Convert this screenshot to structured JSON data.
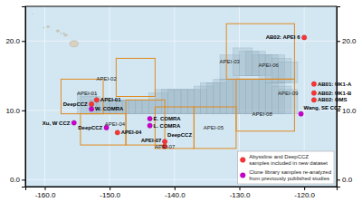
{
  "chart_data": {
    "type": "scatter",
    "xlim": [
      -163,
      -115
    ],
    "ylim": [
      -1,
      25
    ],
    "y2lim": [
      -1,
      25
    ],
    "xticks": [
      {
        "value": -160,
        "label": "-160.0"
      },
      {
        "value": -150,
        "label": "-150.0"
      },
      {
        "value": -140,
        "label": "-140.0"
      },
      {
        "value": -130,
        "label": "-130.0"
      },
      {
        "value": -120,
        "label": "-120.0"
      }
    ],
    "yticks": [
      {
        "value": 0,
        "label": "0.0"
      },
      {
        "value": 10,
        "label": "10.0"
      },
      {
        "value": 20,
        "label": "20.0"
      }
    ],
    "y2ticks": [
      {
        "value": 0,
        "label": "0.0"
      },
      {
        "value": 10,
        "label": "10.0"
      },
      {
        "value": 20,
        "label": "20.0"
      }
    ],
    "grid": true,
    "legend": "lower right",
    "series": [
      {
        "name": "Abyssline and DeepCCZ\nsamples included in new dataset",
        "color": "#ff3333",
        "x": [
          -152.8,
          -152.0,
          -148.8,
          -141.5,
          -141.5,
          -120.0,
          -118.5,
          -118.5,
          -118.5
        ],
        "values": [
          10.9,
          11.5,
          6.8,
          5.5,
          4.8,
          20.5,
          13.8,
          12.5,
          11.5
        ],
        "labels": [
          "DeepCCZ",
          "APEI-01",
          "APEI-04",
          "DeepCCZ",
          "APEI-07",
          "AB02: APEI 6",
          "AB01: UK1-A",
          "AB02: UK1-B",
          "AB02: OMS"
        ]
      },
      {
        "name": "Clone library samples re-analyzed\nfrom previously published studies",
        "color": "#cc00cc",
        "x": [
          -155.5,
          -152.8,
          -150.5,
          -143.8,
          -143.8,
          -120.5
        ],
        "values": [
          8.2,
          10.2,
          7.5,
          8.8,
          7.8,
          9.5
        ],
        "labels": [
          "Xu, W CCZ",
          "W. COMRA",
          "DeepCCZ",
          "E. COMRA",
          "L. COMRA",
          "Wang, SE CCZ"
        ]
      }
    ],
    "annotations": [
      {
        "text": "APEI-01",
        "x": -153.5,
        "y": 12.5
      },
      {
        "text": "APEI-02",
        "x": -150.5,
        "y": 14.5
      },
      {
        "text": "APEI-03",
        "x": -131.5,
        "y": 17.0
      },
      {
        "text": "APEI-04",
        "x": -149.2,
        "y": 8.0
      },
      {
        "text": "APEI-05",
        "x": -134.0,
        "y": 7.5
      },
      {
        "text": "APEI-06",
        "x": -125.5,
        "y": 16.5
      },
      {
        "text": "APEI-07",
        "x": -141.5,
        "y": 4.8
      },
      {
        "text": "APEI-08",
        "x": -126.5,
        "y": 9.5
      },
      {
        "text": "APEI-09",
        "x": -122.5,
        "y": 12.5
      }
    ],
    "apei_boxes": [
      [
        -157.5,
        -151.0,
        9.5,
        14.5
      ],
      [
        -154.5,
        -147.5,
        5.0,
        9.5
      ],
      [
        -149.0,
        -143.0,
        12.0,
        17.5
      ],
      [
        -147.5,
        -141.5,
        5.0,
        11.5
      ],
      [
        -143.0,
        -137.0,
        4.5,
        10.5
      ],
      [
        -137.0,
        -130.5,
        4.5,
        10.5
      ],
      [
        -132.0,
        -121.5,
        14.5,
        22.5
      ],
      [
        -130.5,
        -121.5,
        7.0,
        14.5
      ]
    ],
    "claim_boxes": [
      [
        -155.0,
        -152.0,
        9.5,
        12.5
      ],
      [
        -154.5,
        -151.5,
        9.5,
        12.0
      ],
      [
        -153.0,
        -150.0,
        9.5,
        11.5
      ],
      [
        -152.0,
        -149.0,
        9.5,
        11.5
      ],
      [
        -151.0,
        -148.0,
        9.5,
        11.5
      ],
      [
        -150.0,
        -147.0,
        9.5,
        11.5
      ],
      [
        -149.0,
        -146.0,
        9.5,
        11.5
      ],
      [
        -148.0,
        -145.0,
        9.5,
        11.5
      ],
      [
        -147.0,
        -144.0,
        9.5,
        11.5
      ],
      [
        -146.0,
        -143.0,
        9.5,
        11.5
      ],
      [
        -145.0,
        -142.0,
        9.5,
        11.5
      ],
      [
        -144.0,
        -141.0,
        9.5,
        12.5
      ],
      [
        -143.0,
        -140.0,
        9.5,
        13.0
      ],
      [
        -142.0,
        -139.0,
        9.5,
        13.0
      ],
      [
        -141.0,
        -138.0,
        9.5,
        13.0
      ],
      [
        -140.0,
        -137.0,
        9.5,
        13.0
      ],
      [
        -139.0,
        -136.0,
        9.5,
        13.0
      ],
      [
        -138.0,
        -135.0,
        9.5,
        13.0
      ],
      [
        -137.0,
        -134.0,
        9.5,
        13.5
      ],
      [
        -136.0,
        -133.0,
        9.5,
        14.0
      ],
      [
        -135.0,
        -132.0,
        9.5,
        14.0
      ],
      [
        -134.0,
        -131.0,
        9.5,
        14.5
      ],
      [
        -133.0,
        -130.0,
        9.5,
        14.5
      ],
      [
        -132.0,
        -129.0,
        9.5,
        14.5
      ],
      [
        -131.0,
        -128.0,
        9.5,
        14.5
      ],
      [
        -130.0,
        -127.0,
        9.5,
        14.5
      ],
      [
        -129.0,
        -126.0,
        9.5,
        14.5
      ],
      [
        -128.0,
        -125.0,
        9.5,
        14.5
      ],
      [
        -127.0,
        -124.0,
        9.5,
        14.5
      ],
      [
        -126.0,
        -123.0,
        9.5,
        14.0
      ],
      [
        -125.0,
        -122.0,
        9.5,
        13.5
      ],
      [
        -124.0,
        -121.0,
        9.5,
        13.0
      ],
      [
        -133.0,
        -130.0,
        14.5,
        18.0
      ],
      [
        -131.0,
        -128.0,
        15.0,
        19.0
      ],
      [
        -130.0,
        -127.0,
        15.0,
        18.5
      ],
      [
        -129.0,
        -126.0,
        15.0,
        18.5
      ],
      [
        -128.0,
        -125.0,
        15.0,
        18.0
      ],
      [
        -127.0,
        -124.0,
        14.5,
        18.0
      ],
      [
        -126.0,
        -123.0,
        14.0,
        18.0
      ],
      [
        -125.0,
        -122.0,
        14.0,
        17.5
      ],
      [
        -124.0,
        -121.0,
        14.0,
        17.0
      ]
    ],
    "islands": [
      [
        -155.5,
        19.6,
        1.3,
        0.9
      ],
      [
        -156.8,
        20.85,
        0.55,
        0.28
      ],
      [
        -157.05,
        21.1,
        0.22,
        0.12
      ],
      [
        -157.5,
        21.1,
        0.18,
        0.1
      ],
      [
        -158.0,
        21.45,
        0.5,
        0.28
      ],
      [
        -159.5,
        22.05,
        0.42,
        0.22
      ],
      [
        -160.15,
        21.9,
        0.15,
        0.1
      ],
      [
        -161.9,
        23.9,
        0.08,
        0.06
      ]
    ]
  }
}
